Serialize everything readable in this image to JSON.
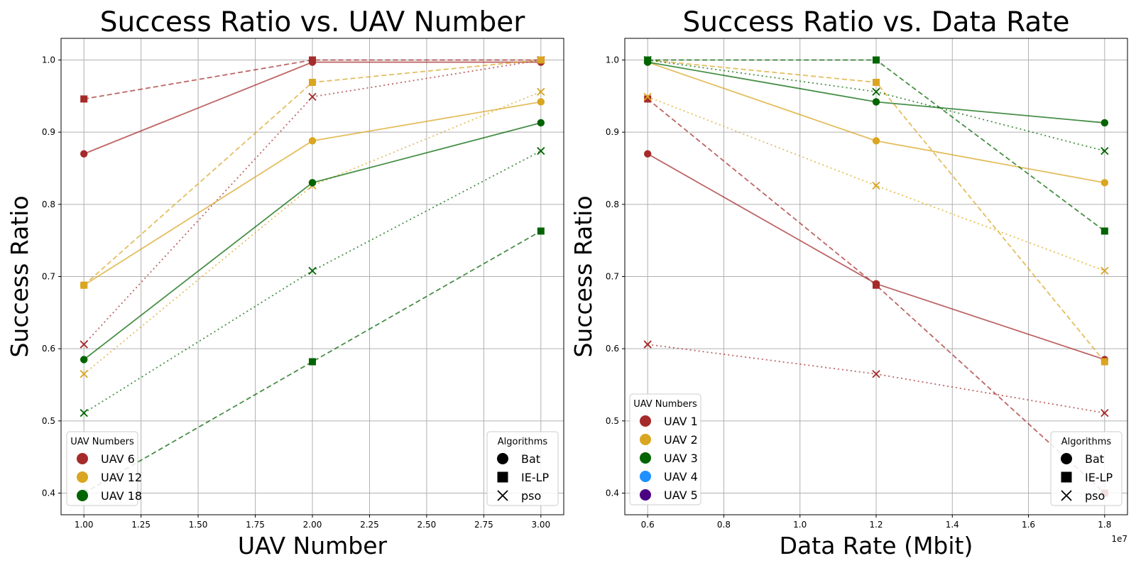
{
  "chart_data": [
    {
      "type": "line",
      "title": "Success Ratio vs. UAV Number",
      "xlabel": "UAV Number",
      "ylabel": "Success Ratio",
      "xlim": [
        0.9,
        3.1
      ],
      "ylim": [
        0.37,
        1.03
      ],
      "xticks": [
        1.0,
        1.25,
        1.5,
        1.75,
        2.0,
        2.25,
        2.5,
        2.75,
        3.0
      ],
      "xtick_labels": [
        "1.00",
        "1.25",
        "1.50",
        "1.75",
        "2.00",
        "2.25",
        "2.50",
        "2.75",
        "3.00"
      ],
      "yticks": [
        0.4,
        0.5,
        0.6,
        0.7,
        0.8,
        0.9,
        1.0
      ],
      "ytick_labels": [
        "0.4",
        "0.5",
        "0.6",
        "0.7",
        "0.8",
        "0.9",
        "1.0"
      ],
      "offset_text": "",
      "grid": true,
      "x": [
        1,
        2,
        3
      ],
      "series": [
        {
          "group": "UAV 6",
          "algorithm": "Bat",
          "color": "#a52a2a",
          "values": [
            0.87,
            0.997,
            0.997
          ]
        },
        {
          "group": "UAV 6",
          "algorithm": "IE-LP",
          "color": "#a52a2a",
          "values": [
            0.946,
            1.0,
            1.0
          ]
        },
        {
          "group": "UAV 6",
          "algorithm": "pso",
          "color": "#a52a2a",
          "values": [
            0.606,
            0.949,
            1.0
          ]
        },
        {
          "group": "UAV 12",
          "algorithm": "Bat",
          "color": "#daa520",
          "values": [
            0.688,
            0.888,
            0.942
          ]
        },
        {
          "group": "UAV 12",
          "algorithm": "IE-LP",
          "color": "#daa520",
          "values": [
            0.688,
            0.969,
            1.0
          ]
        },
        {
          "group": "UAV 12",
          "algorithm": "pso",
          "color": "#daa520",
          "values": [
            0.565,
            0.826,
            0.956
          ]
        },
        {
          "group": "UAV 18",
          "algorithm": "Bat",
          "color": "#006400",
          "values": [
            0.585,
            0.83,
            0.913
          ]
        },
        {
          "group": "UAV 18",
          "algorithm": "IE-LP",
          "color": "#006400",
          "values": [
            0.4,
            0.582,
            0.763
          ]
        },
        {
          "group": "UAV 18",
          "algorithm": "pso",
          "color": "#006400",
          "values": [
            0.511,
            0.708,
            0.874
          ]
        }
      ],
      "legend_groups": {
        "title": "UAV Numbers",
        "placement": "lower-left",
        "entries": [
          {
            "label": "UAV 6",
            "color": "#a52a2a"
          },
          {
            "label": "UAV 12",
            "color": "#daa520"
          },
          {
            "label": "UAV 18",
            "color": "#006400"
          }
        ]
      },
      "legend_algorithms": {
        "title": "Algorithms",
        "placement": "lower-right",
        "entries": [
          {
            "label": "Bat",
            "marker": "circle"
          },
          {
            "label": "IE-LP",
            "marker": "square"
          },
          {
            "label": "pso",
            "marker": "x"
          }
        ]
      }
    },
    {
      "type": "line",
      "title": "Success Ratio vs. Data Rate",
      "xlabel": "Data Rate (Mbit)",
      "ylabel": "Success Ratio",
      "xlim": [
        5400000,
        18600000
      ],
      "ylim": [
        0.37,
        1.03
      ],
      "xticks": [
        6000000,
        8000000,
        10000000,
        12000000,
        14000000,
        16000000,
        18000000
      ],
      "xtick_labels": [
        "0.6",
        "0.8",
        "1.0",
        "1.2",
        "1.4",
        "1.6",
        "1.8"
      ],
      "yticks": [
        0.4,
        0.5,
        0.6,
        0.7,
        0.8,
        0.9,
        1.0
      ],
      "ytick_labels": [
        "0.4",
        "0.5",
        "0.6",
        "0.7",
        "0.8",
        "0.9",
        "1.0"
      ],
      "offset_text": "1e7",
      "grid": true,
      "x": [
        6000000,
        12000000,
        18000000
      ],
      "series": [
        {
          "group": "UAV 1",
          "algorithm": "Bat",
          "color": "#a52a2a",
          "values": [
            0.87,
            0.69,
            0.585
          ]
        },
        {
          "group": "UAV 1",
          "algorithm": "IE-LP",
          "color": "#a52a2a",
          "values": [
            0.946,
            0.688,
            0.4
          ]
        },
        {
          "group": "UAV 1",
          "algorithm": "pso",
          "color": "#a52a2a",
          "values": [
            0.606,
            0.565,
            0.511
          ]
        },
        {
          "group": "UAV 2",
          "algorithm": "Bat",
          "color": "#daa520",
          "values": [
            0.997,
            0.888,
            0.83
          ]
        },
        {
          "group": "UAV 2",
          "algorithm": "IE-LP",
          "color": "#daa520",
          "values": [
            1.0,
            0.969,
            0.582
          ]
        },
        {
          "group": "UAV 2",
          "algorithm": "pso",
          "color": "#daa520",
          "values": [
            0.949,
            0.826,
            0.708
          ]
        },
        {
          "group": "UAV 3",
          "algorithm": "Bat",
          "color": "#006400",
          "values": [
            0.997,
            0.942,
            0.913
          ]
        },
        {
          "group": "UAV 3",
          "algorithm": "IE-LP",
          "color": "#006400",
          "values": [
            1.0,
            1.0,
            0.763
          ]
        },
        {
          "group": "UAV 3",
          "algorithm": "pso",
          "color": "#006400",
          "values": [
            1.0,
            0.956,
            0.874
          ]
        }
      ],
      "legend_groups": {
        "title": "UAV Numbers",
        "placement": "lower-left",
        "entries": [
          {
            "label": "UAV 1",
            "color": "#a52a2a"
          },
          {
            "label": "UAV 2",
            "color": "#daa520"
          },
          {
            "label": "UAV 3",
            "color": "#006400"
          },
          {
            "label": "UAV 4",
            "color": "#1e90ff"
          },
          {
            "label": "UAV 5",
            "color": "#4b0082"
          }
        ]
      },
      "legend_algorithms": {
        "title": "Algorithms",
        "placement": "lower-right",
        "entries": [
          {
            "label": "Bat",
            "marker": "circle"
          },
          {
            "label": "IE-LP",
            "marker": "square"
          },
          {
            "label": "pso",
            "marker": "x"
          }
        ]
      }
    }
  ]
}
